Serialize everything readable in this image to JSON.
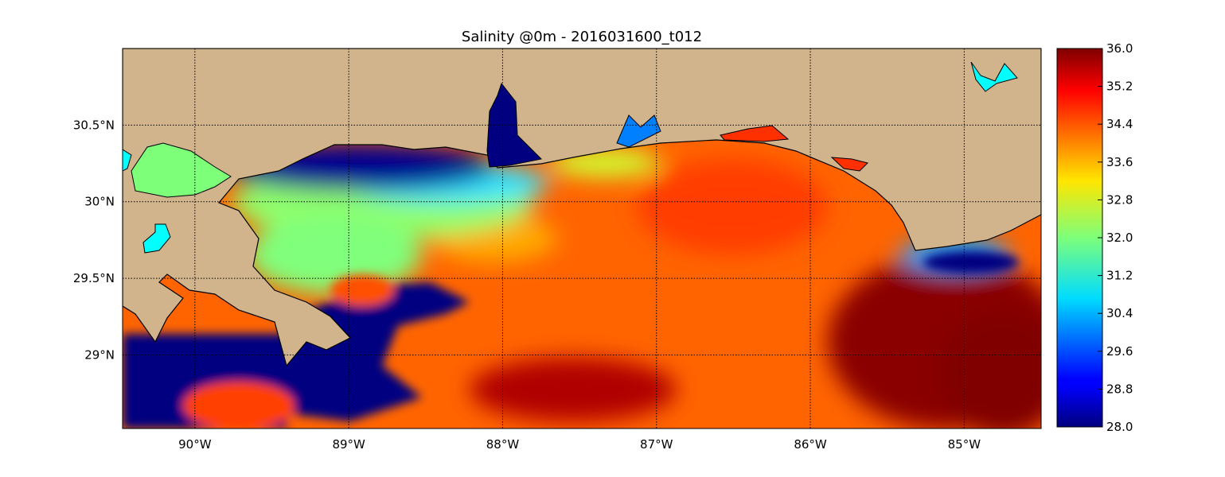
{
  "title": "Salinity @0m - 2016031600_t012",
  "chart_data": {
    "type": "heatmap",
    "title": "Salinity @0m - 2016031600_t012",
    "variable": "Salinity",
    "depth": "0m",
    "colormap": "jet",
    "value_range": [
      28.0,
      36.0
    ],
    "lon_range": [
      -90.47,
      -84.5
    ],
    "lat_range": [
      28.52,
      31.0
    ],
    "grid": true,
    "land_color": "#d2b48c",
    "x_ticks": [
      {
        "value": -90,
        "label": "90°W"
      },
      {
        "value": -89,
        "label": "89°W"
      },
      {
        "value": -88,
        "label": "88°W"
      },
      {
        "value": -87,
        "label": "87°W"
      },
      {
        "value": -86,
        "label": "86°W"
      },
      {
        "value": -85,
        "label": "85°W"
      }
    ],
    "y_ticks": [
      {
        "value": 30.5,
        "label": "30.5°N"
      },
      {
        "value": 30.0,
        "label": "30°N"
      },
      {
        "value": 29.5,
        "label": "29.5°N"
      },
      {
        "value": 29.0,
        "label": "29°N"
      }
    ],
    "colorbar_ticks": [
      "28.0",
      "28.8",
      "29.6",
      "30.4",
      "31.2",
      "32.0",
      "32.8",
      "33.6",
      "34.4",
      "35.2",
      "36.0"
    ],
    "colorbar_placement": "right"
  }
}
